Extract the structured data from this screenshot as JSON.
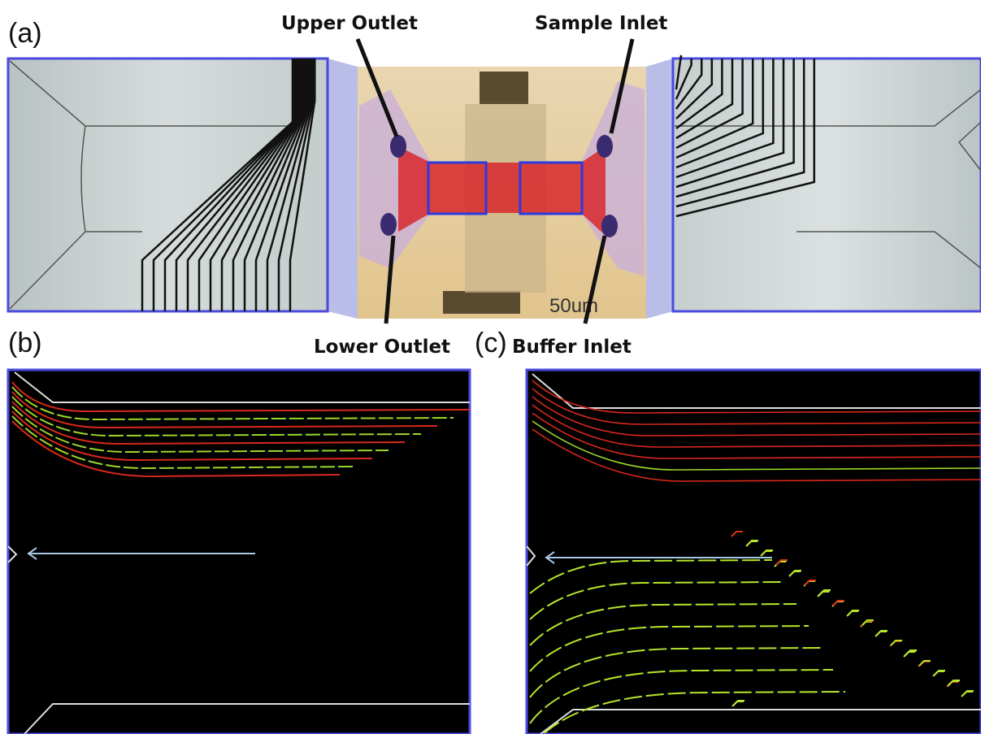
{
  "labels": {
    "a": "(a)",
    "b": "(b)",
    "c": "(c)"
  },
  "annotations": {
    "upper_outlet": "Upper Outlet",
    "sample_inlet": "Sample Inlet",
    "lower_outlet": "Lower Outlet",
    "buffer_inlet": "Buffer Inlet"
  },
  "scale_bar": "50um"
}
